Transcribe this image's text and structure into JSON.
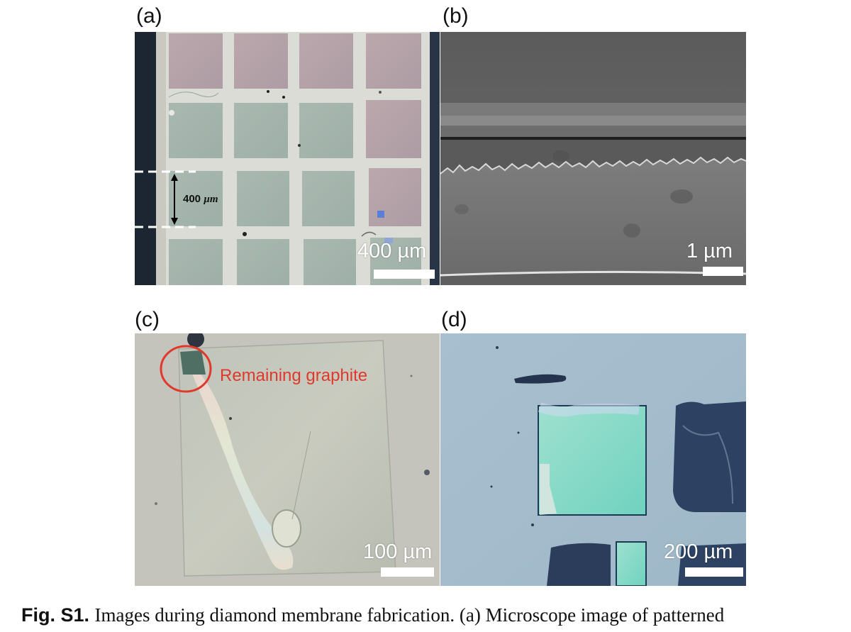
{
  "panels": {
    "a": {
      "label": "(a)",
      "scale_bar": "400 µm",
      "dimension_value": "400",
      "dimension_unit": "µm"
    },
    "b": {
      "label": "(b)",
      "scale_bar": "1 µm"
    },
    "c": {
      "label": "(c)",
      "scale_bar": "100 µm",
      "annotation": "Remaining graphite"
    },
    "d": {
      "label": "(d)",
      "scale_bar": "200 µm"
    }
  },
  "caption": {
    "figure_label": "Fig. S1.",
    "text": "Images during diamond membrane fabrication. (a) Microscope image of patterned"
  },
  "colors": {
    "annotation": "#e0392b",
    "scale_bar": "#ffffff"
  }
}
